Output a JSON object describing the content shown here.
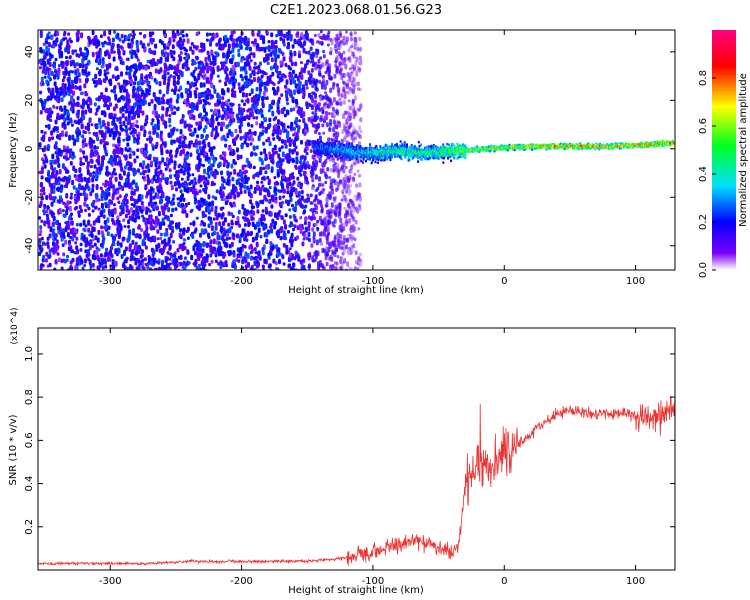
{
  "figure_title": "C2E1.2023.068.01.56.G23",
  "chart_data": [
    {
      "type": "heatmap",
      "xlabel": "Height of straight line (km)",
      "ylabel": "Frequency (Hz)",
      "xlim": [
        -355,
        130
      ],
      "ylim": [
        -50,
        49
      ],
      "x_ticks": [
        -300,
        -200,
        -100,
        0,
        100
      ],
      "x_tick_labels": [
        "-300",
        "-200",
        "-100",
        "0",
        "100"
      ],
      "y_ticks": [
        -40,
        -20,
        0,
        20,
        40
      ],
      "y_tick_labels": [
        "-40",
        "-20",
        "0",
        "20",
        "40"
      ],
      "colorbar": {
        "label": "Normalized spectral amplitude",
        "range": [
          0,
          1
        ],
        "ticks": [
          0,
          0.2,
          0.4,
          0.6,
          0.8
        ],
        "tick_labels": [
          "0.0",
          "0.2",
          "0.4",
          "0.6",
          "0.8"
        ],
        "colormap": [
          "#ffffff",
          "#7b00ff",
          "#0000ff",
          "#00e0ff",
          "#00ff20",
          "#ffff00",
          "#ff0000",
          "#ff0080"
        ]
      },
      "signal_trace": [
        {
          "x": -145,
          "freq": 1.0,
          "amp": 0.3
        },
        {
          "x": -130,
          "freq": 0.5,
          "amp": 0.35
        },
        {
          "x": -115,
          "freq": -1.0,
          "amp": 0.4
        },
        {
          "x": -100,
          "freq": -1.5,
          "amp": 0.45
        },
        {
          "x": -85,
          "freq": -0.5,
          "amp": 0.5
        },
        {
          "x": -70,
          "freq": -1.0,
          "amp": 0.55
        },
        {
          "x": -55,
          "freq": -1.0,
          "amp": 0.5
        },
        {
          "x": -40,
          "freq": -0.5,
          "amp": 0.6
        },
        {
          "x": -30,
          "freq": 0.0,
          "amp": 0.7
        },
        {
          "x": -15,
          "freq": 0.5,
          "amp": 0.7
        },
        {
          "x": 0,
          "freq": 1.0,
          "amp": 0.75
        },
        {
          "x": 20,
          "freq": 1.5,
          "amp": 0.8
        },
        {
          "x": 40,
          "freq": 1.5,
          "amp": 0.85
        },
        {
          "x": 60,
          "freq": 1.5,
          "amp": 0.85
        },
        {
          "x": 80,
          "freq": 1.5,
          "amp": 0.8
        },
        {
          "x": 100,
          "freq": 2.0,
          "amp": 0.85
        },
        {
          "x": 115,
          "freq": 2.5,
          "amp": 0.9
        },
        {
          "x": 130,
          "freq": 3.0,
          "amp": 0.9
        }
      ],
      "noise_region": {
        "x_from": -355,
        "x_to": -120,
        "amp": 0.25
      }
    },
    {
      "type": "line",
      "xlabel": "Height of straight line (km)",
      "ylabel": "SNR (10 * v/v)",
      "y_multiplier_label": "(x10^4)",
      "xlim": [
        -355,
        130
      ],
      "ylim": [
        0,
        1.12
      ],
      "x_ticks": [
        -300,
        -200,
        -100,
        0,
        100
      ],
      "x_tick_labels": [
        "-300",
        "-200",
        "-100",
        "0",
        "100"
      ],
      "y_ticks": [
        0.2,
        0.4,
        0.6,
        0.8,
        1.0
      ],
      "y_tick_labels": [
        "0.2",
        "0.4",
        "0.6",
        "0.8",
        "1.0"
      ],
      "series": [
        {
          "color": "#ee3333",
          "x": [
            -355,
            -330,
            -300,
            -270,
            -240,
            -210,
            -180,
            -150,
            -130,
            -115,
            -100,
            -90,
            -80,
            -70,
            -60,
            -50,
            -40,
            -35,
            -30,
            -25,
            -20,
            -15,
            -10,
            -5,
            0,
            10,
            20,
            30,
            40,
            50,
            60,
            70,
            80,
            90,
            100,
            110,
            120,
            125,
            130
          ],
          "y": [
            0.03,
            0.03,
            0.03,
            0.03,
            0.04,
            0.04,
            0.04,
            0.04,
            0.05,
            0.06,
            0.08,
            0.1,
            0.12,
            0.14,
            0.13,
            0.11,
            0.08,
            0.1,
            0.4,
            0.45,
            0.48,
            0.45,
            0.47,
            0.52,
            0.55,
            0.58,
            0.63,
            0.68,
            0.72,
            0.74,
            0.73,
            0.72,
            0.72,
            0.73,
            0.72,
            0.71,
            0.7,
            0.74,
            0.75
          ]
        }
      ]
    }
  ]
}
